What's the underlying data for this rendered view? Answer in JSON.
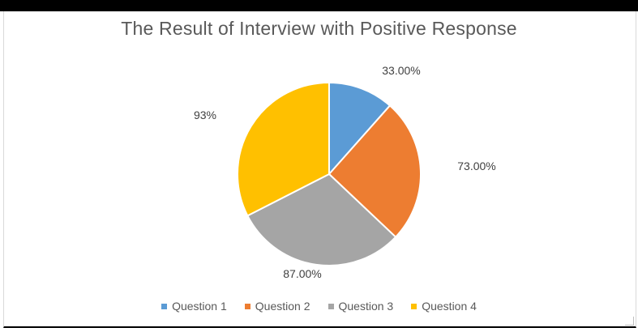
{
  "chart_data": {
    "type": "pie",
    "title": "The Result of Interview with Positive Response",
    "categories": [
      "Question 1",
      "Question 2",
      "Question 3",
      "Question 4"
    ],
    "values": [
      33,
      73,
      87,
      93
    ],
    "data_labels": [
      "33.00%",
      "73.00%",
      "87.00%",
      "93%"
    ],
    "colors": [
      "#5b9bd5",
      "#ed7d31",
      "#a5a5a5",
      "#ffc000"
    ],
    "legend": "bottom",
    "start": "top, clockwise"
  }
}
